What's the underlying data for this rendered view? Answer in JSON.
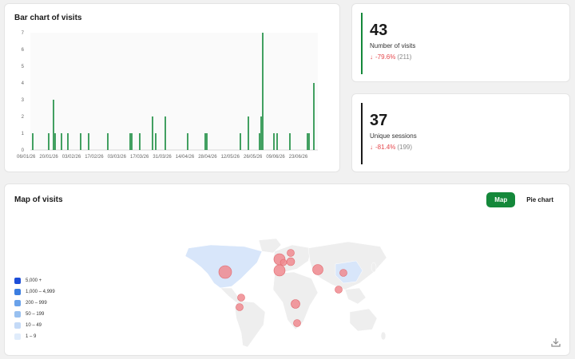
{
  "bar_chart": {
    "title": "Bar chart of visits"
  },
  "chart_data": {
    "type": "bar",
    "ylim": [
      0,
      7
    ],
    "y_ticks": [
      0,
      1,
      2,
      3,
      4,
      5,
      6,
      7
    ],
    "x_tick_labels": [
      "06/01/26",
      "20/01/26",
      "03/02/26",
      "17/02/26",
      "03/03/26",
      "17/03/26",
      "31/03/26",
      "14/04/26",
      "28/04/26",
      "12/05/26",
      "26/05/26",
      "09/06/26",
      "23/06/26"
    ],
    "num_days": 180,
    "values": [
      0,
      1,
      0,
      0,
      0,
      0,
      0,
      0,
      0,
      0,
      0,
      1,
      0,
      0,
      3,
      1,
      0,
      0,
      0,
      1,
      0,
      0,
      0,
      1,
      0,
      0,
      0,
      0,
      0,
      0,
      0,
      1,
      0,
      0,
      0,
      0,
      1,
      0,
      0,
      0,
      0,
      0,
      0,
      0,
      0,
      0,
      0,
      0,
      1,
      0,
      0,
      0,
      0,
      0,
      0,
      0,
      0,
      0,
      0,
      0,
      0,
      0,
      1,
      1,
      0,
      0,
      0,
      0,
      1,
      0,
      0,
      0,
      0,
      0,
      0,
      0,
      2,
      0,
      1,
      0,
      0,
      0,
      0,
      0,
      2,
      0,
      0,
      0,
      0,
      0,
      0,
      0,
      0,
      0,
      0,
      0,
      0,
      0,
      1,
      0,
      0,
      0,
      0,
      0,
      0,
      0,
      0,
      0,
      0,
      1,
      1,
      0,
      0,
      0,
      0,
      0,
      0,
      0,
      0,
      0,
      0,
      0,
      0,
      0,
      0,
      0,
      0,
      0,
      0,
      0,
      0,
      1,
      0,
      0,
      0,
      0,
      2,
      0,
      0,
      0,
      0,
      0,
      0,
      1,
      2,
      7,
      0,
      0,
      0,
      0,
      0,
      0,
      1,
      0,
      1,
      0,
      0,
      0,
      0,
      0,
      0,
      0,
      1,
      0,
      0,
      0,
      0,
      0,
      0,
      0,
      0,
      0,
      0,
      1,
      1,
      0,
      0,
      4,
      0,
      0
    ],
    "bar_color": "#14883a",
    "grid": true
  },
  "stats": [
    {
      "value": "43",
      "label": "Number of visits",
      "change": "-79.6%",
      "previous": "(211)"
    },
    {
      "value": "37",
      "label": "Unique sessions",
      "change": "-81.4%",
      "previous": "(199)"
    }
  ],
  "map": {
    "title": "Map of visits",
    "toggle": {
      "map_label": "Map",
      "pie_label": "Pie chart",
      "selected": "map"
    },
    "legend": [
      {
        "label": "5,000 +",
        "color": "#1d4ed8"
      },
      {
        "label": "1,000 – 4,999",
        "color": "#3b7de0"
      },
      {
        "label": "200 – 999",
        "color": "#6aa2ea"
      },
      {
        "label": "50 – 199",
        "color": "#98c0f0"
      },
      {
        "label": "10 – 49",
        "color": "#c4daf7"
      },
      {
        "label": "1 – 9",
        "color": "#e0ecfb"
      }
    ],
    "land_color": "#eeeeee",
    "visited_color": "#d8e6fa",
    "bubble_color": "#f08a8f",
    "download_icon": "download-icon"
  },
  "colors": {
    "accent": "#14883a",
    "negative": "#e5484d"
  }
}
